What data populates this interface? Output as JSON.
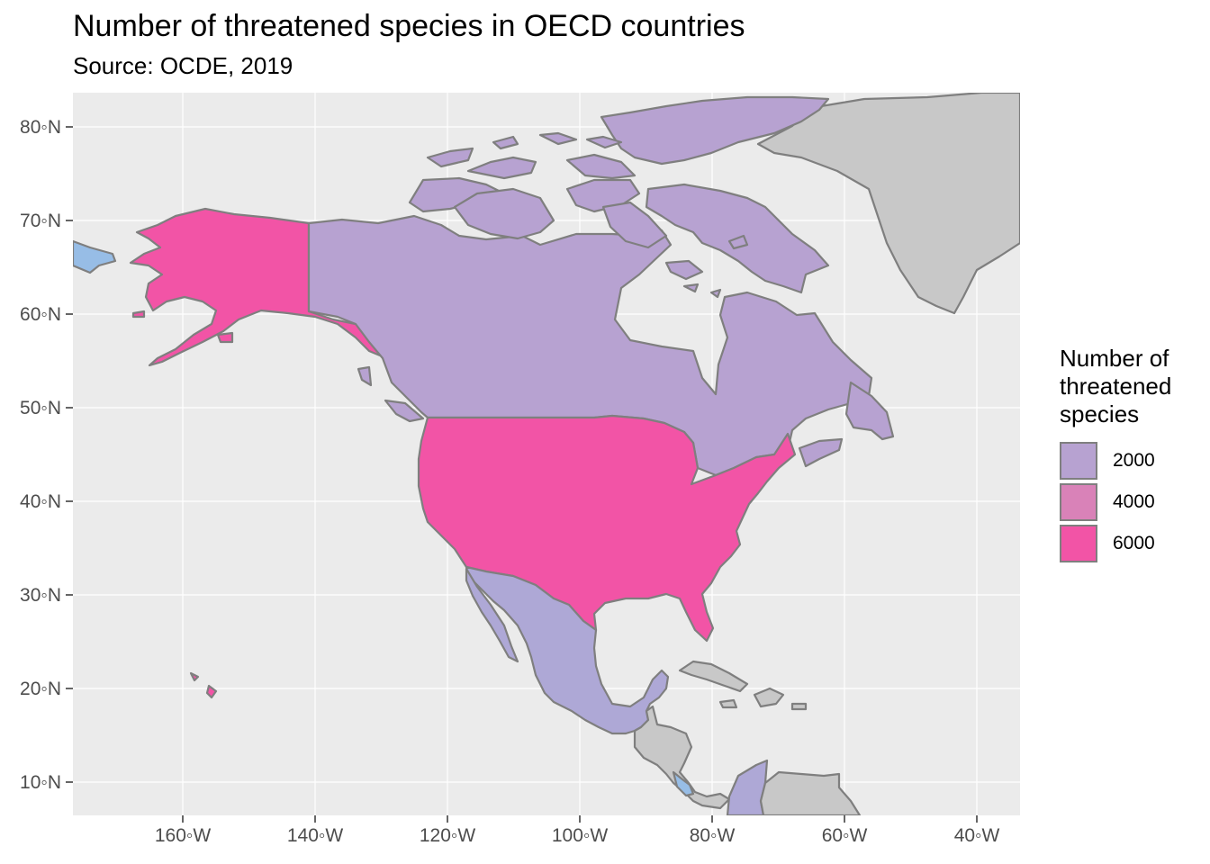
{
  "header": {
    "title": "Number of threatened species in OECD countries",
    "subtitle": "Source: OCDE, 2019"
  },
  "axes": {
    "x_ticks": [
      "160◦W",
      "140◦W",
      "120◦W",
      "100◦W",
      "80◦W",
      "60◦W",
      "40◦W"
    ],
    "y_ticks": [
      "80◦N",
      "70◦N",
      "60◦N",
      "50◦N",
      "40◦N",
      "30◦N",
      "20◦N",
      "10◦N"
    ]
  },
  "legend": {
    "title_lines": [
      "Number of",
      "threatened",
      "species"
    ],
    "items": [
      {
        "label": "2000",
        "color": "#b7a2d1"
      },
      {
        "label": "4000",
        "color": "#d982b8"
      },
      {
        "label": "6000",
        "color": "#f254a6"
      }
    ]
  },
  "colors": {
    "panel": "#ebebeb",
    "grid": "#ffffff",
    "border": "#7f7f7f",
    "no_data": "#c8c8c8",
    "canada": "#b7a2d1",
    "mexico": "#aea8d6",
    "usa": "#f254a6",
    "light_blue": "#97bde6"
  }
}
